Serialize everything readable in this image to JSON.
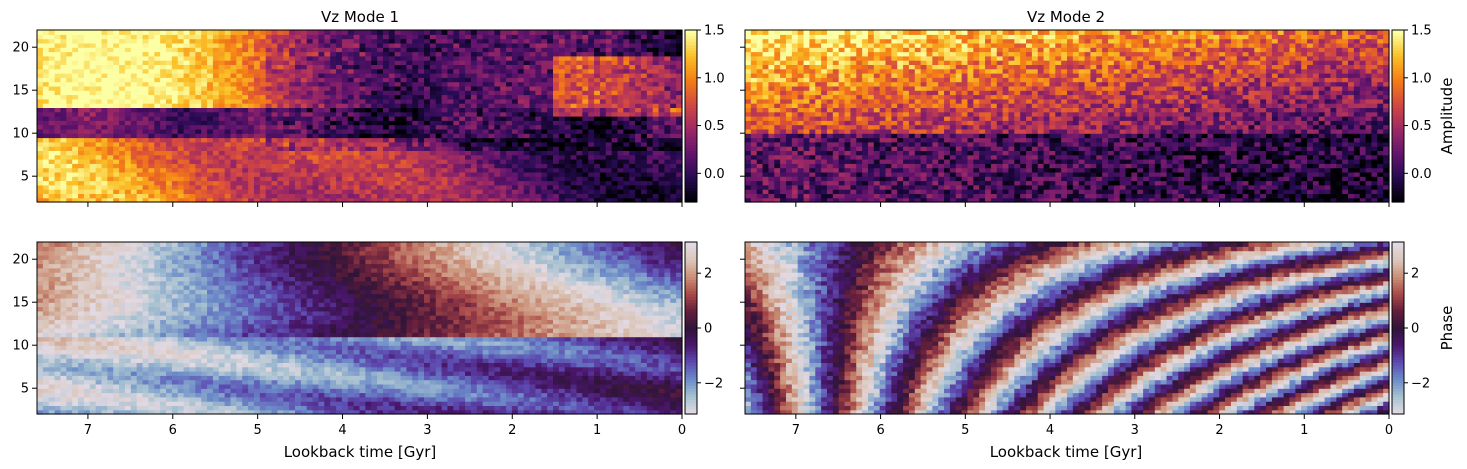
{
  "chart_data": [
    {
      "type": "heatmap",
      "panel": "top-left",
      "title": "Vz Mode 1",
      "quantity": "Amplitude",
      "x_ticks": [
        7,
        6,
        5,
        4,
        3,
        2,
        1,
        0
      ],
      "y_ticks": [
        5,
        10,
        15,
        20
      ],
      "xlim": [
        7.6,
        0
      ],
      "ylim": [
        2,
        22
      ],
      "colormap": "inferno",
      "clim": [
        -0.3,
        1.5
      ],
      "colorbar_ticks": [
        "1.5",
        "1.0",
        "0.5",
        "0.0"
      ],
      "colorbar_tick_values": [
        1.5,
        1.0,
        0.5,
        0.0
      ],
      "colorbar_label": ""
    },
    {
      "type": "heatmap",
      "panel": "top-right",
      "title": "Vz Mode 2",
      "quantity": "Amplitude",
      "x_ticks": [
        7,
        6,
        5,
        4,
        3,
        2,
        1,
        0
      ],
      "y_ticks": [
        5,
        10,
        15,
        20
      ],
      "xlim": [
        7.6,
        0
      ],
      "ylim": [
        2,
        22
      ],
      "colormap": "inferno",
      "clim": [
        -0.3,
        1.5
      ],
      "colorbar_ticks": [
        "1.5",
        "1.0",
        "0.5",
        "0.0"
      ],
      "colorbar_tick_values": [
        1.5,
        1.0,
        0.5,
        0.0
      ],
      "colorbar_label": "Amplitude"
    },
    {
      "type": "heatmap",
      "panel": "bottom-left",
      "title": "",
      "quantity": "Phase",
      "x_ticks": [
        7,
        6,
        5,
        4,
        3,
        2,
        1,
        0
      ],
      "y_ticks": [
        5,
        10,
        15,
        20
      ],
      "xlim": [
        7.6,
        0
      ],
      "ylim": [
        2,
        22
      ],
      "xlabel": "Lookback time [Gyr]",
      "colormap": "twilight",
      "clim": [
        -3.14,
        3.14
      ],
      "colorbar_ticks": [
        "2",
        "0",
        "−2"
      ],
      "colorbar_tick_values": [
        2,
        0,
        -2
      ],
      "colorbar_label": ""
    },
    {
      "type": "heatmap",
      "panel": "bottom-right",
      "title": "",
      "quantity": "Phase",
      "x_ticks": [
        7,
        6,
        5,
        4,
        3,
        2,
        1,
        0
      ],
      "y_ticks": [
        5,
        10,
        15,
        20
      ],
      "xlim": [
        7.6,
        0
      ],
      "ylim": [
        2,
        22
      ],
      "xlabel": "Lookback time [Gyr]",
      "colormap": "twilight",
      "clim": [
        -3.14,
        3.14
      ],
      "colorbar_ticks": [
        "2",
        "0",
        "−2"
      ],
      "colorbar_tick_values": [
        2,
        0,
        -2
      ],
      "colorbar_label": "Phase"
    }
  ]
}
